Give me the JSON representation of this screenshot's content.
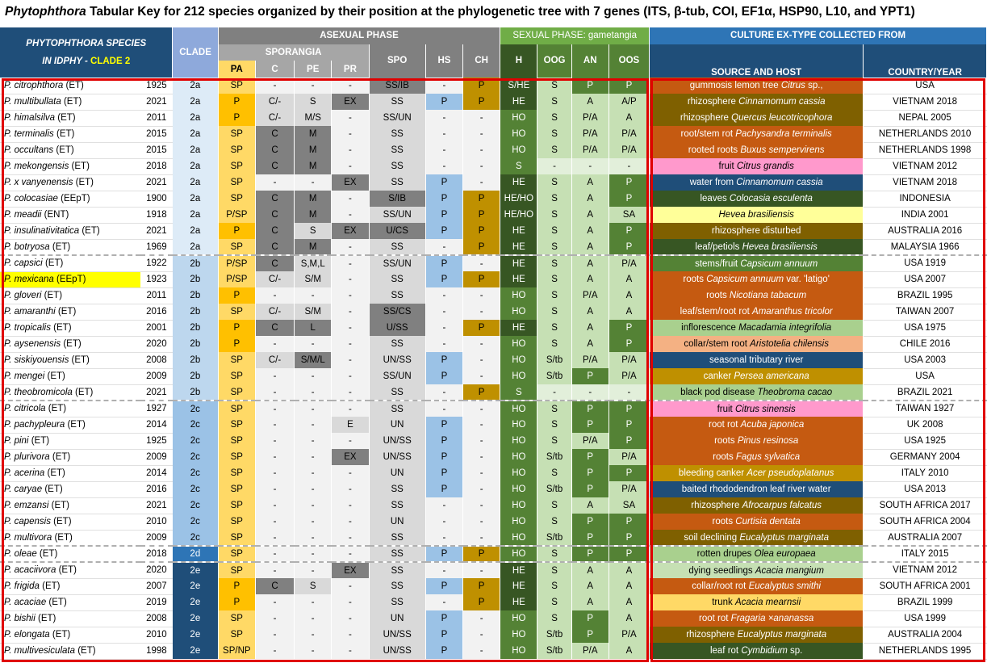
{
  "title": {
    "genus": "Phytophthora",
    "rest": "Tabular Key for 212 species organized by their position at the phylogenetic tree with 7 genes (ITS, β-tub, COI, EF1α, HSP90, L10, and YPT1)"
  },
  "header": {
    "species_line1": "PHYTOPHTHORA SPECIES",
    "species_line2a": "IN IDPHY - ",
    "species_line2b": "CLADE 2",
    "clade": "CLADE",
    "asexual": "ASEXUAL PHASE",
    "sporangia": "SPORANGIA",
    "sexual": "SEXUAL PHASE: gametangia",
    "culture": "CULTURE EX-TYPE COLLECTED FROM",
    "cols": {
      "pa": "PA",
      "c": "C",
      "pe": "PE",
      "pr": "PR",
      "spo": "SPO",
      "hs": "HS",
      "ch": "CH",
      "h": "H",
      "oog": "OOG",
      "an": "AN",
      "oos": "OOS",
      "source": "SOURCE AND HOST",
      "country": "COUNTRY/YEAR"
    }
  },
  "colors": {
    "pa_yellow": "#ffd966",
    "pa_orange": "#ffc000",
    "gray_light": "#d9d9d9",
    "gray_dark": "#808080",
    "blue_light": "#9bc2e6",
    "gold": "#bf9000",
    "green_dark": "#375623",
    "green_mid": "#548235",
    "green_light": "#c6e0b4",
    "highlight_yellow": "#ffff00",
    "frame_red": "#e00000"
  },
  "rows": [
    {
      "sp": "P. citrophthora",
      "t": "(ET)",
      "yr": "1925",
      "cl": "2a",
      "pa": "SP",
      "c": "-",
      "pe": "-",
      "pr": "-",
      "spo": "SS/IB",
      "hs": "-",
      "ch": "P",
      "h": "S/HE",
      "oog": "S",
      "an": "P",
      "oos": "P",
      "src": [
        [
          "gummosis lemon tree ",
          false
        ],
        [
          "Citrus",
          true
        ],
        [
          " sp.,",
          false
        ]
      ],
      "bg": "#c55a11",
      "ctry": "USA"
    },
    {
      "sp": "P. multibullata",
      "t": "(ET)",
      "yr": "2021",
      "cl": "2a",
      "pa": "P",
      "c": "C/-",
      "pe": "S",
      "pr": "EX",
      "spo": "SS",
      "hs": "P",
      "ch": "P",
      "h": "HE",
      "oog": "S",
      "an": "A",
      "oos": "A/P",
      "src": [
        [
          "rhizosphere ",
          false
        ],
        [
          "Cinnamomum cassia",
          true
        ]
      ],
      "bg": "#7f6000",
      "ctry": "VIETNAM 2018"
    },
    {
      "sp": "P. himalsilva",
      "t": "(ET)",
      "yr": "2011",
      "cl": "2a",
      "pa": "P",
      "c": "C/-",
      "pe": "M/S",
      "pr": "-",
      "spo": "SS/UN",
      "hs": "-",
      "ch": "-",
      "h": "HO",
      "oog": "S",
      "an": "P/A",
      "oos": "A",
      "src": [
        [
          "rhizosphere ",
          false
        ],
        [
          "Quercus leucotricophora",
          true
        ]
      ],
      "bg": "#7f6000",
      "ctry": "NEPAL 2005"
    },
    {
      "sp": "P. terminalis",
      "t": "(ET)",
      "yr": "2015",
      "cl": "2a",
      "pa": "SP",
      "c": "C",
      "pe": "M",
      "pr": "-",
      "spo": "SS",
      "hs": "-",
      "ch": "-",
      "h": "HO",
      "oog": "S",
      "an": "P/A",
      "oos": "P/A",
      "src": [
        [
          "root/stem rot ",
          false
        ],
        [
          "Pachysandra terminalis",
          true
        ]
      ],
      "bg": "#c55a11",
      "ctry": "NETHERLANDS 2010"
    },
    {
      "sp": "P. occultans",
      "t": "(ET)",
      "yr": "2015",
      "cl": "2a",
      "pa": "SP",
      "c": "C",
      "pe": "M",
      "pr": "-",
      "spo": "SS",
      "hs": "-",
      "ch": "-",
      "h": "HO",
      "oog": "S",
      "an": "P/A",
      "oos": "P/A",
      "src": [
        [
          "rooted roots ",
          false
        ],
        [
          "Buxus sempervirens",
          true
        ]
      ],
      "bg": "#c55a11",
      "ctry": "NETHERLANDS 1998"
    },
    {
      "sp": "P. mekongensis",
      "t": "(ET)",
      "yr": "2018",
      "cl": "2a",
      "pa": "SP",
      "c": "C",
      "pe": "M",
      "pr": "-",
      "spo": "SS",
      "hs": "-",
      "ch": "-",
      "h": "S",
      "oog": "-",
      "an": "-",
      "oos": "-",
      "src": [
        [
          "fruit ",
          false
        ],
        [
          "Citrus grandis",
          true
        ]
      ],
      "bg": "#ff99cc",
      "ctry": "VIETNAM 2012"
    },
    {
      "sp": "P. x vanyenensis",
      "t": "(ET)",
      "yr": "2021",
      "cl": "2a",
      "pa": "SP",
      "c": "-",
      "pe": "-",
      "pr": "EX",
      "spo": "SS",
      "hs": "P",
      "ch": "-",
      "h": "HE",
      "oog": "S",
      "an": "A",
      "oos": "P",
      "src": [
        [
          "water from ",
          false
        ],
        [
          "Cinnamomum cassia",
          true
        ]
      ],
      "bg": "#1f4e79",
      "ctry": "VIETNAM 2018"
    },
    {
      "sp": "P. colocasiae",
      "t": "(EEpT)",
      "yr": "1900",
      "cl": "2a",
      "pa": "SP",
      "c": "C",
      "pe": "M",
      "pr": "-",
      "spo": "S/IB",
      "hs": "P",
      "ch": "P",
      "h": "HE/HO",
      "oog": "S",
      "an": "A",
      "oos": "P",
      "src": [
        [
          "leaves ",
          false
        ],
        [
          "Colocasia esculenta",
          true
        ]
      ],
      "bg": "#375623",
      "ctry": "INDONESIA"
    },
    {
      "sp": "P. meadii",
      "t": "(ENT)",
      "yr": "1918",
      "cl": "2a",
      "pa": "P/SP",
      "c": "C",
      "pe": "M",
      "pr": "-",
      "spo": "SS/UN",
      "hs": "P",
      "ch": "P",
      "h": "HE/HO",
      "oog": "S",
      "an": "A",
      "oos": "SA",
      "src": [
        [
          "Hevea brasiliensis",
          true
        ]
      ],
      "bg": "#ffff99",
      "ctry": "INDIA 2001"
    },
    {
      "sp": "P. insulinativitatica",
      "t": "(ET)",
      "yr": "2021",
      "cl": "2a",
      "pa": "P",
      "c": "C",
      "pe": "S",
      "pr": "EX",
      "spo": "U/CS",
      "hs": "P",
      "ch": "P",
      "h": "HE",
      "oog": "S",
      "an": "A",
      "oos": "P",
      "src": [
        [
          "rhizosphere disturbed",
          false
        ]
      ],
      "bg": "#7f6000",
      "ctry": "AUSTRALIA 2016"
    },
    {
      "sp": "P. botryosa",
      "t": "(ET)",
      "yr": "1969",
      "cl": "2a",
      "pa": "SP",
      "c": "C",
      "pe": "M",
      "pr": "-",
      "spo": "SS",
      "hs": "-",
      "ch": "P",
      "h": "HE",
      "oog": "S",
      "an": "A",
      "oos": "P",
      "src": [
        [
          "leaf/petiols ",
          false
        ],
        [
          "Hevea brasiliensis",
          true
        ]
      ],
      "bg": "#375623",
      "ctry": "MALAYSIA 1966"
    },
    {
      "sp": "P. capsici",
      "t": "(ET)",
      "yr": "1922",
      "cl": "2b",
      "pa": "P/SP",
      "c": "C",
      "pe": "S,M,L",
      "pr": "-",
      "spo": "SS/UN",
      "hs": "P",
      "ch": "-",
      "h": "HE",
      "oog": "S",
      "an": "A",
      "oos": "P/A",
      "src": [
        [
          "stems/fruit ",
          false
        ],
        [
          "Capsicum annuum",
          true
        ]
      ],
      "bg": "#548235",
      "ctry": "USA 1919"
    },
    {
      "sp": "P. mexicana",
      "t": "(EEpT)",
      "yr": "1923",
      "cl": "2b",
      "pa": "P/SP",
      "c": "C/-",
      "pe": "S/M",
      "pr": "-",
      "spo": "SS",
      "hs": "P",
      "ch": "P",
      "h": "HE",
      "oog": "S",
      "an": "A",
      "oos": "A",
      "src": [
        [
          "roots ",
          false
        ],
        [
          "Capsicum annuum",
          true
        ],
        [
          " var. 'latigo'",
          false
        ]
      ],
      "bg": "#c55a11",
      "ctry": "USA 2007",
      "hl": true
    },
    {
      "sp": "P. gloveri",
      "t": "(ET)",
      "yr": "2011",
      "cl": "2b",
      "pa": "P",
      "c": "-",
      "pe": "-",
      "pr": "-",
      "spo": "SS",
      "hs": "-",
      "ch": "-",
      "h": "HO",
      "oog": "S",
      "an": "P/A",
      "oos": "A",
      "src": [
        [
          "roots ",
          false
        ],
        [
          "Nicotiana tabacum",
          true
        ]
      ],
      "bg": "#c55a11",
      "ctry": "BRAZIL 1995"
    },
    {
      "sp": "P. amaranthi",
      "t": "(ET)",
      "yr": "2016",
      "cl": "2b",
      "pa": "SP",
      "c": "C/-",
      "pe": "S/M",
      "pr": "-",
      "spo": "SS/CS",
      "hs": "-",
      "ch": "-",
      "h": "HO",
      "oog": "S",
      "an": "A",
      "oos": "A",
      "src": [
        [
          "leaf/stem/root rot ",
          false
        ],
        [
          "Amaranthus tricolor",
          true
        ]
      ],
      "bg": "#c55a11",
      "ctry": "TAIWAN 2007"
    },
    {
      "sp": "P. tropicalis",
      "t": "(ET)",
      "yr": "2001",
      "cl": "2b",
      "pa": "P",
      "c": "C",
      "pe": "L",
      "pr": "-",
      "spo": "U/SS",
      "hs": "-",
      "ch": "P",
      "h": "HE",
      "oog": "S",
      "an": "A",
      "oos": "P",
      "src": [
        [
          "inflorescence ",
          false
        ],
        [
          "Macadamia integrifolia",
          true
        ]
      ],
      "bg": "#a9d08e",
      "ctry": "USA 1975"
    },
    {
      "sp": "P. aysenensis",
      "t": "(ET)",
      "yr": "2020",
      "cl": "2b",
      "pa": "P",
      "c": "-",
      "pe": "-",
      "pr": "-",
      "spo": "SS",
      "hs": "-",
      "ch": "-",
      "h": "HO",
      "oog": "S",
      "an": "A",
      "oos": "P",
      "src": [
        [
          "collar/stem root ",
          false
        ],
        [
          "Aristotelia chilensis",
          true
        ]
      ],
      "bg": "#f4b183",
      "ctry": "CHILE 2016"
    },
    {
      "sp": "P. siskiyouensis",
      "t": "(ET)",
      "yr": "2008",
      "cl": "2b",
      "pa": "SP",
      "c": "C/-",
      "pe": "S/M/L",
      "pr": "-",
      "spo": "UN/SS",
      "hs": "P",
      "ch": "-",
      "h": "HO",
      "oog": "S/tb",
      "an": "P/A",
      "oos": "P/A",
      "src": [
        [
          "seasonal tributary river",
          false
        ]
      ],
      "bg": "#1f4e79",
      "ctry": "USA 2003"
    },
    {
      "sp": "P. mengei",
      "t": "(ET)",
      "yr": "2009",
      "cl": "2b",
      "pa": "SP",
      "c": "-",
      "pe": "-",
      "pr": "-",
      "spo": "SS/UN",
      "hs": "P",
      "ch": "-",
      "h": "HO",
      "oog": "S/tb",
      "an": "P",
      "oos": "P/A",
      "src": [
        [
          "canker ",
          false
        ],
        [
          "Persea americana",
          true
        ]
      ],
      "bg": "#bf9000",
      "ctry": "USA"
    },
    {
      "sp": "P. theobromicola",
      "t": "(ET)",
      "yr": "2021",
      "cl": "2b",
      "pa": "SP",
      "c": "-",
      "pe": "-",
      "pr": "-",
      "spo": "SS",
      "hs": "-",
      "ch": "P",
      "h": "S",
      "oog": "-",
      "an": "-",
      "oos": "-",
      "src": [
        [
          "black pod disease ",
          false
        ],
        [
          "Theobroma cacao",
          true
        ]
      ],
      "bg": "#a9d08e",
      "ctry": "BRAZIL 2021"
    },
    {
      "sp": "P. citricola",
      "t": "(ET)",
      "yr": "1927",
      "cl": "2c",
      "pa": "SP",
      "c": "-",
      "pe": "-",
      "pr": "-",
      "spo": "SS",
      "hs": "-",
      "ch": "-",
      "h": "HO",
      "oog": "S",
      "an": "P",
      "oos": "P",
      "src": [
        [
          "fruit ",
          false
        ],
        [
          "Citrus sinensis",
          true
        ]
      ],
      "bg": "#ff99cc",
      "ctry": "TAIWAN 1927"
    },
    {
      "sp": "P. pachypleura",
      "t": "(ET)",
      "yr": "2014",
      "cl": "2c",
      "pa": "SP",
      "c": "-",
      "pe": "-",
      "pr": "E",
      "spo": "UN",
      "hs": "P",
      "ch": "-",
      "h": "HO",
      "oog": "S",
      "an": "P",
      "oos": "P",
      "src": [
        [
          "root rot ",
          false
        ],
        [
          "Acuba japonica",
          true
        ]
      ],
      "bg": "#c55a11",
      "ctry": "UK 2008"
    },
    {
      "sp": "P. pini",
      "t": "(ET)",
      "yr": "1925",
      "cl": "2c",
      "pa": "SP",
      "c": "-",
      "pe": "-",
      "pr": "-",
      "spo": "UN/SS",
      "hs": "P",
      "ch": "-",
      "h": "HO",
      "oog": "S",
      "an": "P/A",
      "oos": "P",
      "src": [
        [
          "roots ",
          false
        ],
        [
          "Pinus resinosa",
          true
        ]
      ],
      "bg": "#c55a11",
      "ctry": "USA 1925"
    },
    {
      "sp": "P. plurivora",
      "t": "(ET)",
      "yr": "2009",
      "cl": "2c",
      "pa": "SP",
      "c": "-",
      "pe": "-",
      "pr": "EX",
      "spo": "UN/SS",
      "hs": "P",
      "ch": "-",
      "h": "HO",
      "oog": "S/tb",
      "an": "P",
      "oos": "P/A",
      "src": [
        [
          "roots ",
          false
        ],
        [
          "Fagus sylvatica",
          true
        ]
      ],
      "bg": "#c55a11",
      "ctry": "GERMANY 2004"
    },
    {
      "sp": "P. acerina",
      "t": "(ET)",
      "yr": "2014",
      "cl": "2c",
      "pa": "SP",
      "c": "-",
      "pe": "-",
      "pr": "-",
      "spo": "UN",
      "hs": "P",
      "ch": "-",
      "h": "HO",
      "oog": "S",
      "an": "P",
      "oos": "P",
      "src": [
        [
          "bleeding canker ",
          false
        ],
        [
          "Acer pseudoplatanus",
          true
        ]
      ],
      "bg": "#bf9000",
      "ctry": "ITALY 2010"
    },
    {
      "sp": "P. caryae",
      "t": "(ET)",
      "yr": "2016",
      "cl": "2c",
      "pa": "SP",
      "c": "-",
      "pe": "-",
      "pr": "-",
      "spo": "SS",
      "hs": "P",
      "ch": "-",
      "h": "HO",
      "oog": "S/tb",
      "an": "P",
      "oos": "P/A",
      "src": [
        [
          "baited rhododendron leaf river water",
          false
        ]
      ],
      "bg": "#1f4e79",
      "ctry": "USA 2013"
    },
    {
      "sp": "P. emzansi",
      "t": "(ET)",
      "yr": "2021",
      "cl": "2c",
      "pa": "SP",
      "c": "-",
      "pe": "-",
      "pr": "-",
      "spo": "SS",
      "hs": "-",
      "ch": "-",
      "h": "HO",
      "oog": "S",
      "an": "A",
      "oos": "SA",
      "src": [
        [
          "rhizosphere ",
          false
        ],
        [
          "Afrocarpus falcatus",
          true
        ]
      ],
      "bg": "#7f6000",
      "ctry": "SOUTH AFRICA 2017"
    },
    {
      "sp": "P. capensis",
      "t": "(ET)",
      "yr": "2010",
      "cl": "2c",
      "pa": "SP",
      "c": "-",
      "pe": "-",
      "pr": "-",
      "spo": "UN",
      "hs": "-",
      "ch": "-",
      "h": "HO",
      "oog": "S",
      "an": "P",
      "oos": "P",
      "src": [
        [
          "roots ",
          false
        ],
        [
          "Curtisia dentata",
          true
        ]
      ],
      "bg": "#c55a11",
      "ctry": "SOUTH AFRICA 2004"
    },
    {
      "sp": "P. multivora",
      "t": "(ET)",
      "yr": "2009",
      "cl": "2c",
      "pa": "SP",
      "c": "-",
      "pe": "-",
      "pr": "-",
      "spo": "SS",
      "hs": "-",
      "ch": "-",
      "h": "HO",
      "oog": "S/tb",
      "an": "P",
      "oos": "P",
      "src": [
        [
          "soil declining ",
          false
        ],
        [
          "Eucalyptus marginata",
          true
        ]
      ],
      "bg": "#7f6000",
      "ctry": "AUSTRALIA 2007"
    },
    {
      "sp": "P. oleae",
      "t": "(ET)",
      "yr": "2018",
      "cl": "2d",
      "pa": "SP",
      "c": "-",
      "pe": "-",
      "pr": "-",
      "spo": "SS",
      "hs": "P",
      "ch": "P",
      "h": "HO",
      "oog": "S",
      "an": "P",
      "oos": "P",
      "src": [
        [
          "rotten drupes ",
          false
        ],
        [
          "Olea europaea",
          true
        ]
      ],
      "bg": "#a9d08e",
      "ctry": "ITALY 2015"
    },
    {
      "sp": "P. acaciivora",
      "t": "(ET)",
      "yr": "2020",
      "cl": "2e",
      "pa": "SP",
      "c": "-",
      "pe": "-",
      "pr": "EX",
      "spo": "SS",
      "hs": "-",
      "ch": "-",
      "h": "HE",
      "oog": "S",
      "an": "A",
      "oos": "A",
      "src": [
        [
          "dying seedlings ",
          false
        ],
        [
          "Acacia mangium",
          true
        ]
      ],
      "bg": "#c6e0b4",
      "ctry": "VIETNAM 2012"
    },
    {
      "sp": "P. frigida",
      "t": "(ET)",
      "yr": "2007",
      "cl": "2e",
      "pa": "P",
      "c": "C",
      "pe": "S",
      "pr": "-",
      "spo": "SS",
      "hs": "P",
      "ch": "P",
      "h": "HE",
      "oog": "S",
      "an": "A",
      "oos": "A",
      "src": [
        [
          "collar/root rot ",
          false
        ],
        [
          "Eucalyptus smithi",
          true
        ]
      ],
      "bg": "#c55a11",
      "ctry": "SOUTH AFRICA 2001"
    },
    {
      "sp": "P. acaciae",
      "t": "(ET)",
      "yr": "2019",
      "cl": "2e",
      "pa": "P",
      "c": "-",
      "pe": "-",
      "pr": "-",
      "spo": "SS",
      "hs": "-",
      "ch": "P",
      "h": "HE",
      "oog": "S",
      "an": "A",
      "oos": "A",
      "src": [
        [
          "trunk ",
          false
        ],
        [
          "Acacia mearnsii",
          true
        ]
      ],
      "bg": "#ffd966",
      "ctry": "BRAZIL 1999"
    },
    {
      "sp": "P. bishii",
      "t": "(ET)",
      "yr": "2008",
      "cl": "2e",
      "pa": "SP",
      "c": "-",
      "pe": "-",
      "pr": "-",
      "spo": "UN",
      "hs": "P",
      "ch": "-",
      "h": "HO",
      "oog": "S",
      "an": "P",
      "oos": "A",
      "src": [
        [
          "root rot ",
          false
        ],
        [
          "Fragaria ×ananassa",
          true
        ]
      ],
      "bg": "#c55a11",
      "ctry": "USA 1999"
    },
    {
      "sp": "P. elongata",
      "t": "(ET)",
      "yr": "2010",
      "cl": "2e",
      "pa": "SP",
      "c": "-",
      "pe": "-",
      "pr": "-",
      "spo": "UN/SS",
      "hs": "P",
      "ch": "-",
      "h": "HO",
      "oog": "S/tb",
      "an": "P",
      "oos": "P/A",
      "src": [
        [
          "rhizosphere ",
          false
        ],
        [
          "Eucalyptus marginata",
          true
        ]
      ],
      "bg": "#7f6000",
      "ctry": "AUSTRALIA 2004"
    },
    {
      "sp": "P. multivesiculata",
      "t": "(ET)",
      "yr": "1998",
      "cl": "2e",
      "pa": "SP/NP",
      "c": "-",
      "pe": "-",
      "pr": "-",
      "spo": "UN/SS",
      "hs": "P",
      "ch": "-",
      "h": "HO",
      "oog": "S/tb",
      "an": "P/A",
      "oos": "A",
      "src": [
        [
          "leaf rot ",
          false
        ],
        [
          "Cymbidium",
          true
        ],
        [
          " sp.",
          false
        ]
      ],
      "bg": "#375623",
      "ctry": "NETHERLANDS 1995"
    }
  ]
}
